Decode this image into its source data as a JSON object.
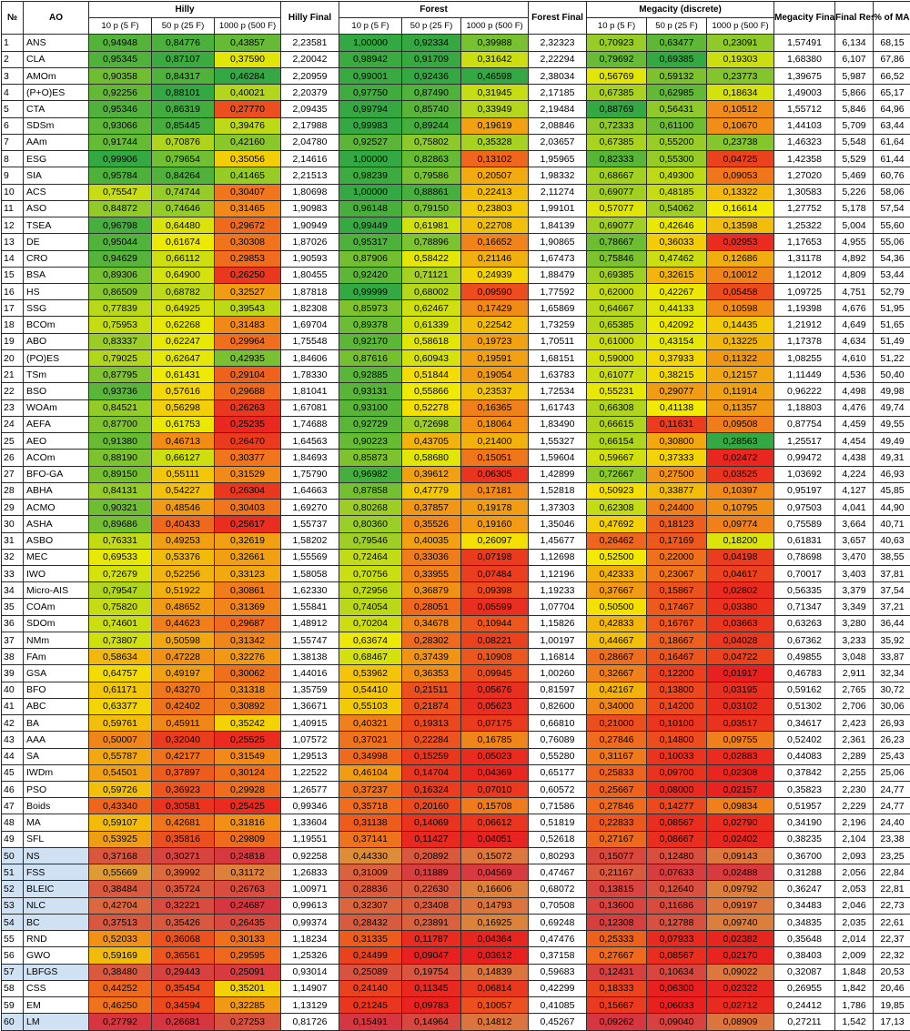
{
  "headers": {
    "num": "№",
    "ao": "AO",
    "hilly": "Hilly",
    "hilly_final": "Hilly Final",
    "forest": "Forest",
    "forest_final": "Forest Final",
    "megacity": "Megacity (discrete)",
    "megacity_final": "Megacity Final",
    "final_result": "Final Result",
    "pct_max": "% of MAX",
    "sub": [
      "10 p (5 F)",
      "50 p (25 F)",
      "1000 p (500 F)"
    ]
  },
  "selected_rows": [
    50,
    51,
    52,
    53,
    54,
    57,
    60
  ],
  "rows": [
    [
      "1",
      "ANS",
      "0,94948",
      "0,84776",
      "0,43857",
      "2,23581",
      "1,00000",
      "0,92334",
      "0,39988",
      "2,32323",
      "0,70923",
      "0,63477",
      "0,23091",
      "1,57491",
      "6,134",
      "68,15"
    ],
    [
      "2",
      "CLA",
      "0,95345",
      "0,87107",
      "0,37590",
      "2,20042",
      "0,98942",
      "0,91709",
      "0,31642",
      "2,22294",
      "0,79692",
      "0,69385",
      "0,19303",
      "1,68380",
      "6,107",
      "67,86"
    ],
    [
      "3",
      "AMOm",
      "0,90358",
      "0,84317",
      "0,46284",
      "2,20959",
      "0,99001",
      "0,92436",
      "0,46598",
      "2,38034",
      "0,56769",
      "0,59132",
      "0,23773",
      "1,39675",
      "5,987",
      "66,52"
    ],
    [
      "4",
      "(P+O)ES",
      "0,92256",
      "0,88101",
      "0,40021",
      "2,20379",
      "0,97750",
      "0,87490",
      "0,31945",
      "2,17185",
      "0,67385",
      "0,62985",
      "0,18634",
      "1,49003",
      "5,866",
      "65,17"
    ],
    [
      "5",
      "CTA",
      "0,95346",
      "0,86319",
      "0,27770",
      "2,09435",
      "0,99794",
      "0,85740",
      "0,33949",
      "2,19484",
      "0,88769",
      "0,56431",
      "0,10512",
      "1,55712",
      "5,846",
      "64,96"
    ],
    [
      "6",
      "SDSm",
      "0,93066",
      "0,85445",
      "0,39476",
      "2,17988",
      "0,99983",
      "0,89244",
      "0,19619",
      "2,08846",
      "0,72333",
      "0,61100",
      "0,10670",
      "1,44103",
      "5,709",
      "63,44"
    ],
    [
      "7",
      "AAm",
      "0,91744",
      "0,70876",
      "0,42160",
      "2,04780",
      "0,92527",
      "0,75802",
      "0,35328",
      "2,03657",
      "0,67385",
      "0,55200",
      "0,23738",
      "1,46323",
      "5,548",
      "61,64"
    ],
    [
      "8",
      "ESG",
      "0,99906",
      "0,79654",
      "0,35056",
      "2,14616",
      "1,00000",
      "0,82863",
      "0,13102",
      "1,95965",
      "0,82333",
      "0,55300",
      "0,04725",
      "1,42358",
      "5,529",
      "61,44"
    ],
    [
      "9",
      "SIA",
      "0,95784",
      "0,84264",
      "0,41465",
      "2,21513",
      "0,98239",
      "0,79586",
      "0,20507",
      "1,98332",
      "0,68667",
      "0,49300",
      "0,09053",
      "1,27020",
      "5,469",
      "60,76"
    ],
    [
      "10",
      "ACS",
      "0,75547",
      "0,74744",
      "0,30407",
      "1,80698",
      "1,00000",
      "0,88861",
      "0,22413",
      "2,11274",
      "0,69077",
      "0,48185",
      "0,13322",
      "1,30583",
      "5,226",
      "58,06"
    ],
    [
      "11",
      "ASO",
      "0,84872",
      "0,74646",
      "0,31465",
      "1,90983",
      "0,96148",
      "0,79150",
      "0,23803",
      "1,99101",
      "0,57077",
      "0,54062",
      "0,16614",
      "1,27752",
      "5,178",
      "57,54"
    ],
    [
      "12",
      "TSEA",
      "0,96798",
      "0,64480",
      "0,29672",
      "1,90949",
      "0,99449",
      "0,61981",
      "0,22708",
      "1,84139",
      "0,69077",
      "0,42646",
      "0,13598",
      "1,25322",
      "5,004",
      "55,60"
    ],
    [
      "13",
      "DE",
      "0,95044",
      "0,61674",
      "0,30308",
      "1,87026",
      "0,95317",
      "0,78896",
      "0,16652",
      "1,90865",
      "0,78667",
      "0,36033",
      "0,02953",
      "1,17653",
      "4,955",
      "55,06"
    ],
    [
      "14",
      "CRO",
      "0,94629",
      "0,66112",
      "0,29853",
      "1,90593",
      "0,87906",
      "0,58422",
      "0,21146",
      "1,67473",
      "0,75846",
      "0,47462",
      "0,12686",
      "1,31178",
      "4,892",
      "54,36"
    ],
    [
      "15",
      "BSA",
      "0,89306",
      "0,64900",
      "0,26250",
      "1,80455",
      "0,92420",
      "0,71121",
      "0,24939",
      "1,88479",
      "0,69385",
      "0,32615",
      "0,10012",
      "1,12012",
      "4,809",
      "53,44"
    ],
    [
      "16",
      "HS",
      "0,86509",
      "0,68782",
      "0,32527",
      "1,87818",
      "0,99999",
      "0,68002",
      "0,09590",
      "1,77592",
      "0,62000",
      "0,42267",
      "0,05458",
      "1,09725",
      "4,751",
      "52,79"
    ],
    [
      "17",
      "SSG",
      "0,77839",
      "0,64925",
      "0,39543",
      "1,82308",
      "0,85973",
      "0,62467",
      "0,17429",
      "1,65869",
      "0,64667",
      "0,44133",
      "0,10598",
      "1,19398",
      "4,676",
      "51,95"
    ],
    [
      "18",
      "BCOm",
      "0,75953",
      "0,62268",
      "0,31483",
      "1,69704",
      "0,89378",
      "0,61339",
      "0,22542",
      "1,73259",
      "0,65385",
      "0,42092",
      "0,14435",
      "1,21912",
      "4,649",
      "51,65"
    ],
    [
      "19",
      "ABO",
      "0,83337",
      "0,62247",
      "0,29964",
      "1,75548",
      "0,92170",
      "0,58618",
      "0,19723",
      "1,70511",
      "0,61000",
      "0,43154",
      "0,13225",
      "1,17378",
      "4,634",
      "51,49"
    ],
    [
      "20",
      "(PO)ES",
      "0,79025",
      "0,62647",
      "0,42935",
      "1,84606",
      "0,87616",
      "0,60943",
      "0,19591",
      "1,68151",
      "0,59000",
      "0,37933",
      "0,11322",
      "1,08255",
      "4,610",
      "51,22"
    ],
    [
      "21",
      "TSm",
      "0,87795",
      "0,61431",
      "0,29104",
      "1,78330",
      "0,92885",
      "0,51844",
      "0,19054",
      "1,63783",
      "0,61077",
      "0,38215",
      "0,12157",
      "1,11449",
      "4,536",
      "50,40"
    ],
    [
      "22",
      "BSO",
      "0,93736",
      "0,57616",
      "0,29688",
      "1,81041",
      "0,93131",
      "0,55866",
      "0,23537",
      "1,72534",
      "0,55231",
      "0,29077",
      "0,11914",
      "0,96222",
      "4,498",
      "49,98"
    ],
    [
      "23",
      "WOAm",
      "0,84521",
      "0,56298",
      "0,26263",
      "1,67081",
      "0,93100",
      "0,52278",
      "0,16365",
      "1,61743",
      "0,66308",
      "0,41138",
      "0,11357",
      "1,18803",
      "4,476",
      "49,74"
    ],
    [
      "24",
      "AEFA",
      "0,87700",
      "0,61753",
      "0,25235",
      "1,74688",
      "0,92729",
      "0,72698",
      "0,18064",
      "1,83490",
      "0,66615",
      "0,11631",
      "0,09508",
      "0,87754",
      "4,459",
      "49,55"
    ],
    [
      "25",
      "AEO",
      "0,91380",
      "0,46713",
      "0,26470",
      "1,64563",
      "0,90223",
      "0,43705",
      "0,21400",
      "1,55327",
      "0,66154",
      "0,30800",
      "0,28563",
      "1,25517",
      "4,454",
      "49,49"
    ],
    [
      "26",
      "ACOm",
      "0,88190",
      "0,66127",
      "0,30377",
      "1,84693",
      "0,85873",
      "0,58680",
      "0,15051",
      "1,59604",
      "0,59667",
      "0,37333",
      "0,02472",
      "0,99472",
      "4,438",
      "49,31"
    ],
    [
      "27",
      "BFO-GA",
      "0,89150",
      "0,55111",
      "0,31529",
      "1,75790",
      "0,96982",
      "0,39612",
      "0,06305",
      "1,42899",
      "0,72667",
      "0,27500",
      "0,03525",
      "1,03692",
      "4,224",
      "46,93"
    ],
    [
      "28",
      "ABHA",
      "0,84131",
      "0,54227",
      "0,26304",
      "1,64663",
      "0,87858",
      "0,47779",
      "0,17181",
      "1,52818",
      "0,50923",
      "0,33877",
      "0,10397",
      "0,95197",
      "4,127",
      "45,85"
    ],
    [
      "29",
      "ACMO",
      "0,90321",
      "0,48546",
      "0,30403",
      "1,69270",
      "0,80268",
      "0,37857",
      "0,19178",
      "1,37303",
      "0,62308",
      "0,24400",
      "0,10795",
      "0,97503",
      "4,041",
      "44,90"
    ],
    [
      "30",
      "ASHA",
      "0,89686",
      "0,40433",
      "0,25617",
      "1,55737",
      "0,80360",
      "0,35526",
      "0,19160",
      "1,35046",
      "0,47692",
      "0,18123",
      "0,09774",
      "0,75589",
      "3,664",
      "40,71"
    ],
    [
      "31",
      "ASBO",
      "0,76331",
      "0,49253",
      "0,32619",
      "1,58202",
      "0,79546",
      "0,40035",
      "0,26097",
      "1,45677",
      "0,26462",
      "0,17169",
      "0,18200",
      "0,61831",
      "3,657",
      "40,63"
    ],
    [
      "32",
      "MEC",
      "0,69533",
      "0,53376",
      "0,32661",
      "1,55569",
      "0,72464",
      "0,33036",
      "0,07198",
      "1,12698",
      "0,52500",
      "0,22000",
      "0,04198",
      "0,78698",
      "3,470",
      "38,55"
    ],
    [
      "33",
      "IWO",
      "0,72679",
      "0,52256",
      "0,33123",
      "1,58058",
      "0,70756",
      "0,33955",
      "0,07484",
      "1,12196",
      "0,42333",
      "0,23067",
      "0,04617",
      "0,70017",
      "3,403",
      "37,81"
    ],
    [
      "34",
      "Micro-AIS",
      "0,79547",
      "0,51922",
      "0,30861",
      "1,62330",
      "0,72956",
      "0,36879",
      "0,09398",
      "1,19233",
      "0,37667",
      "0,15867",
      "0,02802",
      "0,56335",
      "3,379",
      "37,54"
    ],
    [
      "35",
      "COAm",
      "0,75820",
      "0,48652",
      "0,31369",
      "1,55841",
      "0,74054",
      "0,28051",
      "0,05599",
      "1,07704",
      "0,50500",
      "0,17467",
      "0,03380",
      "0,71347",
      "3,349",
      "37,21"
    ],
    [
      "36",
      "SDOm",
      "0,74601",
      "0,44623",
      "0,29687",
      "1,48912",
      "0,70204",
      "0,34678",
      "0,10944",
      "1,15826",
      "0,42833",
      "0,16767",
      "0,03663",
      "0,63263",
      "3,280",
      "36,44"
    ],
    [
      "37",
      "NMm",
      "0,73807",
      "0,50598",
      "0,31342",
      "1,55747",
      "0,63674",
      "0,28302",
      "0,08221",
      "1,00197",
      "0,44667",
      "0,18667",
      "0,04028",
      "0,67362",
      "3,233",
      "35,92"
    ],
    [
      "38",
      "FAm",
      "0,58634",
      "0,47228",
      "0,32276",
      "1,38138",
      "0,68467",
      "0,37439",
      "0,10908",
      "1,16814",
      "0,28667",
      "0,16467",
      "0,04722",
      "0,49855",
      "3,048",
      "33,87"
    ],
    [
      "39",
      "GSA",
      "0,64757",
      "0,49197",
      "0,30062",
      "1,44016",
      "0,53962",
      "0,36353",
      "0,09945",
      "1,00260",
      "0,32667",
      "0,12200",
      "0,01917",
      "0,46783",
      "2,911",
      "32,34"
    ],
    [
      "40",
      "BFO",
      "0,61171",
      "0,43270",
      "0,31318",
      "1,35759",
      "0,54410",
      "0,21511",
      "0,05676",
      "0,81597",
      "0,42167",
      "0,13800",
      "0,03195",
      "0,59162",
      "2,765",
      "30,72"
    ],
    [
      "41",
      "ABC",
      "0,63377",
      "0,42402",
      "0,30892",
      "1,36671",
      "0,55103",
      "0,21874",
      "0,05623",
      "0,82600",
      "0,34000",
      "0,14200",
      "0,03102",
      "0,51302",
      "2,706",
      "30,06"
    ],
    [
      "42",
      "BA",
      "0,59761",
      "0,45911",
      "0,35242",
      "1,40915",
      "0,40321",
      "0,19313",
      "0,07175",
      "0,66810",
      "0,21000",
      "0,10100",
      "0,03517",
      "0,34617",
      "2,423",
      "26,93"
    ],
    [
      "43",
      "AAA",
      "0,50007",
      "0,32040",
      "0,25525",
      "1,07572",
      "0,37021",
      "0,22284",
      "0,16785",
      "0,76089",
      "0,27846",
      "0,14800",
      "0,09755",
      "0,52402",
      "2,361",
      "26,23"
    ],
    [
      "44",
      "SA",
      "0,55787",
      "0,42177",
      "0,31549",
      "1,29513",
      "0,34998",
      "0,15259",
      "0,05023",
      "0,55280",
      "0,31167",
      "0,10033",
      "0,02883",
      "0,44083",
      "2,289",
      "25,43"
    ],
    [
      "45",
      "IWDm",
      "0,54501",
      "0,37897",
      "0,30124",
      "1,22522",
      "0,46104",
      "0,14704",
      "0,04369",
      "0,65177",
      "0,25833",
      "0,09700",
      "0,02308",
      "0,37842",
      "2,255",
      "25,06"
    ],
    [
      "46",
      "PSO",
      "0,59726",
      "0,36923",
      "0,29928",
      "1,26577",
      "0,37237",
      "0,16324",
      "0,07010",
      "0,60572",
      "0,25667",
      "0,08000",
      "0,02157",
      "0,35823",
      "2,230",
      "24,77"
    ],
    [
      "47",
      "Boids",
      "0,43340",
      "0,30581",
      "0,25425",
      "0,99346",
      "0,35718",
      "0,20160",
      "0,15708",
      "0,71586",
      "0,27846",
      "0,14277",
      "0,09834",
      "0,51957",
      "2,229",
      "24,77"
    ],
    [
      "48",
      "MA",
      "0,59107",
      "0,42681",
      "0,31816",
      "1,33604",
      "0,31138",
      "0,14069",
      "0,06612",
      "0,51819",
      "0,22833",
      "0,08567",
      "0,02790",
      "0,34190",
      "2,196",
      "24,40"
    ],
    [
      "49",
      "SFL",
      "0,53925",
      "0,35816",
      "0,29809",
      "1,19551",
      "0,37141",
      "0,11427",
      "0,04051",
      "0,52618",
      "0,27167",
      "0,08667",
      "0,02402",
      "0,38235",
      "2,104",
      "23,38"
    ],
    [
      "50",
      "NS",
      "0,37168",
      "0,30271",
      "0,24818",
      "0,92258",
      "0,44330",
      "0,20892",
      "0,15072",
      "0,80293",
      "0,15077",
      "0,12480",
      "0,09143",
      "0,36700",
      "2,093",
      "23,25"
    ],
    [
      "51",
      "FSS",
      "0,55669",
      "0,39992",
      "0,31172",
      "1,26833",
      "0,31009",
      "0,11889",
      "0,04569",
      "0,47467",
      "0,21167",
      "0,07633",
      "0,02488",
      "0,31288",
      "2,056",
      "22,84"
    ],
    [
      "52",
      "BLEIC",
      "0,38484",
      "0,35724",
      "0,26763",
      "1,00971",
      "0,28836",
      "0,22630",
      "0,16606",
      "0,68072",
      "0,13815",
      "0,12640",
      "0,09792",
      "0,36247",
      "2,053",
      "22,81"
    ],
    [
      "53",
      "NLC",
      "0,42704",
      "0,32221",
      "0,24687",
      "0,99613",
      "0,32307",
      "0,23408",
      "0,14793",
      "0,70508",
      "0,13600",
      "0,11686",
      "0,09197",
      "0,34483",
      "2,046",
      "22,73"
    ],
    [
      "54",
      "BC",
      "0,37513",
      "0,35426",
      "0,26435",
      "0,99374",
      "0,28432",
      "0,23891",
      "0,16925",
      "0,69248",
      "0,12308",
      "0,12788",
      "0,09740",
      "0,34835",
      "2,035",
      "22,61"
    ],
    [
      "55",
      "RND",
      "0,52033",
      "0,36068",
      "0,30133",
      "1,18234",
      "0,31335",
      "0,11787",
      "0,04364",
      "0,47476",
      "0,25333",
      "0,07933",
      "0,02382",
      "0,35648",
      "2,014",
      "22,37"
    ],
    [
      "56",
      "GWO",
      "0,59169",
      "0,36561",
      "0,29595",
      "1,25326",
      "0,24499",
      "0,09047",
      "0,03612",
      "0,37158",
      "0,27667",
      "0,08567",
      "0,02170",
      "0,38403",
      "2,009",
      "22,32"
    ],
    [
      "57",
      "LBFGS",
      "0,38480",
      "0,29443",
      "0,25091",
      "0,93014",
      "0,25089",
      "0,19754",
      "0,14839",
      "0,59683",
      "0,12431",
      "0,10634",
      "0,09022",
      "0,32087",
      "1,848",
      "20,53"
    ],
    [
      "58",
      "CSS",
      "0,44252",
      "0,35454",
      "0,35201",
      "1,14907",
      "0,24140",
      "0,11345",
      "0,06814",
      "0,42299",
      "0,18333",
      "0,06300",
      "0,02322",
      "0,26955",
      "1,842",
      "20,46"
    ],
    [
      "59",
      "EM",
      "0,46250",
      "0,34594",
      "0,32285",
      "1,13129",
      "0,21245",
      "0,09783",
      "0,10057",
      "0,41085",
      "0,15667",
      "0,06033",
      "0,02712",
      "0,24412",
      "1,786",
      "19,85"
    ],
    [
      "60",
      "LM",
      "0,27792",
      "0,26681",
      "0,27253",
      "0,81726",
      "0,15491",
      "0,14964",
      "0,14812",
      "0,45267",
      "0,09262",
      "0,09040",
      "0,08909",
      "0,27211",
      "1,542",
      "17,13"
    ]
  ]
}
